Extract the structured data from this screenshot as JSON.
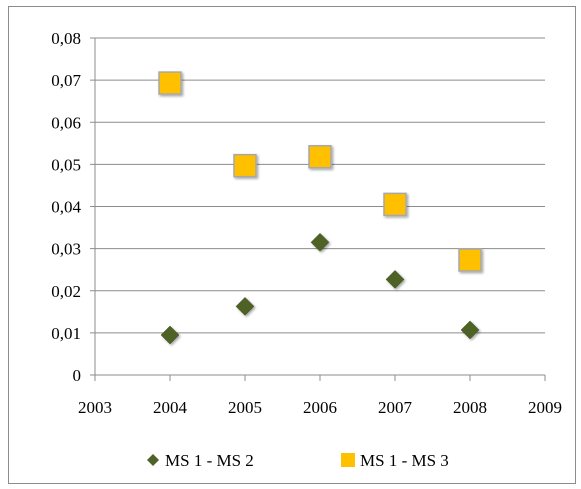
{
  "chart_data": {
    "type": "scatter",
    "title": "",
    "xlabel": "",
    "ylabel": "",
    "xlim": [
      2003,
      2009
    ],
    "ylim": [
      0,
      0.08
    ],
    "x_ticks": [
      "2003",
      "2004",
      "2005",
      "2006",
      "2007",
      "2008",
      "2009"
    ],
    "y_ticks": [
      "0",
      "0,01",
      "0,02",
      "0,03",
      "0,04",
      "0,05",
      "0,06",
      "0,07",
      "0,08"
    ],
    "grid": "horizontal",
    "legend_position": "bottom",
    "series": [
      {
        "name": "MS 1 - MS 2",
        "marker": "diamond",
        "color": "#4f6228",
        "x": [
          2004,
          2005,
          2006,
          2007,
          2008
        ],
        "y": [
          0.0095,
          0.0163,
          0.0315,
          0.0227,
          0.0107
        ]
      },
      {
        "name": "MS 1 - MS 3",
        "marker": "square",
        "color": "#ffc000",
        "x": [
          2004,
          2005,
          2006,
          2007,
          2008
        ],
        "y": [
          0.0693,
          0.0497,
          0.0518,
          0.0405,
          0.0273
        ]
      }
    ]
  }
}
